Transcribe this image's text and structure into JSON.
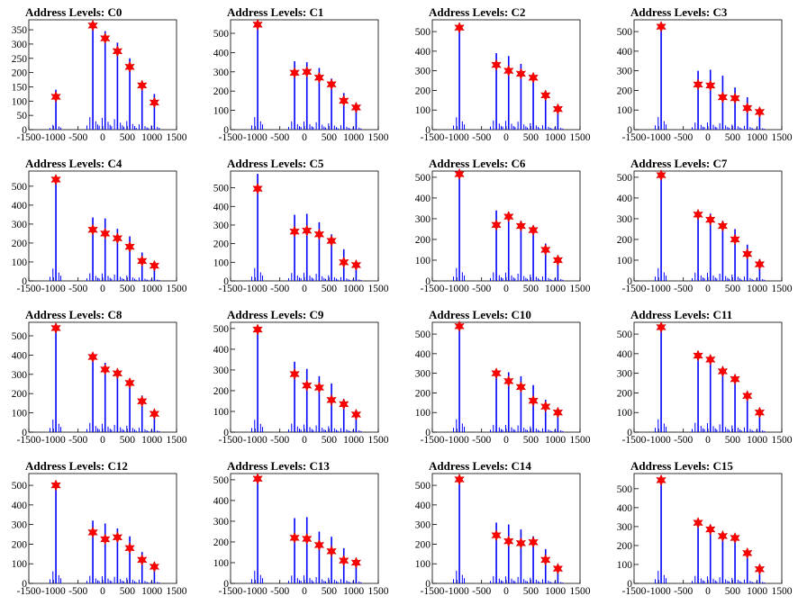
{
  "page": {
    "background": "#ffffff"
  },
  "chart_style": {
    "histogram_color": "#0000ff",
    "marker_color": "#ff0000",
    "marker_shape": "star-icon",
    "axis_color": "#000000"
  },
  "chart_data": [
    {
      "type": "bar",
      "title": "Address Levels: C0",
      "xlim": [
        -1500,
        1500
      ],
      "ylim": [
        0,
        385
      ],
      "xticks": [
        "-1500",
        "-1000",
        "-500",
        "0",
        "500",
        "1000",
        "1500"
      ],
      "yticks": [
        "0",
        "50",
        "100",
        "150",
        "200",
        "250",
        "300",
        "350"
      ],
      "peaks_x": [
        -950,
        -200,
        50,
        300,
        550,
        800,
        1050
      ],
      "bars_y": [
        140,
        365,
        345,
        305,
        250,
        155,
        125
      ],
      "markers_y": [
        115,
        365,
        320,
        275,
        220,
        155,
        95
      ]
    },
    {
      "type": "bar",
      "title": "Address Levels: C1",
      "xlim": [
        -1500,
        1500
      ],
      "ylim": [
        0,
        570
      ],
      "xticks": [
        "-1500",
        "-1000",
        "-500",
        "0",
        "500",
        "1000",
        "1500"
      ],
      "yticks": [
        "0",
        "100",
        "200",
        "300",
        "400",
        "500"
      ],
      "peaks_x": [
        -950,
        -200,
        50,
        300,
        550,
        800,
        1050
      ],
      "bars_y": [
        545,
        355,
        350,
        320,
        265,
        190,
        125
      ],
      "markers_y": [
        545,
        295,
        300,
        270,
        235,
        150,
        115
      ]
    },
    {
      "type": "bar",
      "title": "Address Levels: C2",
      "xlim": [
        -1500,
        1500
      ],
      "ylim": [
        0,
        560
      ],
      "xticks": [
        "-1500",
        "-1000",
        "-500",
        "0",
        "500",
        "1000",
        "1500"
      ],
      "yticks": [
        "0",
        "100",
        "200",
        "300",
        "400",
        "500"
      ],
      "peaks_x": [
        -950,
        -200,
        50,
        300,
        550,
        800,
        1050
      ],
      "bars_y": [
        525,
        390,
        375,
        335,
        270,
        185,
        110
      ],
      "markers_y": [
        520,
        330,
        300,
        285,
        265,
        175,
        105
      ]
    },
    {
      "type": "bar",
      "title": "Address Levels: C3",
      "xlim": [
        -1500,
        1500
      ],
      "ylim": [
        0,
        560
      ],
      "xticks": [
        "-1500",
        "-1000",
        "-500",
        "0",
        "500",
        "1000",
        "1500"
      ],
      "yticks": [
        "0",
        "100",
        "200",
        "300",
        "400",
        "500"
      ],
      "peaks_x": [
        -950,
        -200,
        50,
        300,
        550,
        800,
        1050
      ],
      "bars_y": [
        540,
        300,
        305,
        275,
        215,
        165,
        90
      ],
      "markers_y": [
        525,
        230,
        225,
        165,
        160,
        110,
        90
      ]
    },
    {
      "type": "bar",
      "title": "Address Levels: C4",
      "xlim": [
        -1500,
        1500
      ],
      "ylim": [
        0,
        580
      ],
      "xticks": [
        "-1500",
        "-1000",
        "-500",
        "0",
        "500",
        "1000",
        "1500"
      ],
      "yticks": [
        "0",
        "100",
        "200",
        "300",
        "400",
        "500"
      ],
      "peaks_x": [
        -950,
        -200,
        50,
        300,
        550,
        800,
        1050
      ],
      "bars_y": [
        545,
        335,
        330,
        275,
        235,
        150,
        85
      ],
      "markers_y": [
        535,
        270,
        250,
        225,
        180,
        105,
        80
      ]
    },
    {
      "type": "bar",
      "title": "Address Levels: C5",
      "xlim": [
        -1500,
        1500
      ],
      "ylim": [
        0,
        590
      ],
      "xticks": [
        "-1500",
        "-1000",
        "-500",
        "0",
        "500",
        "1000",
        "1500"
      ],
      "yticks": [
        "0",
        "100",
        "200",
        "300",
        "400",
        "500"
      ],
      "peaks_x": [
        -950,
        -200,
        50,
        300,
        550,
        800,
        1050
      ],
      "bars_y": [
        575,
        355,
        360,
        315,
        250,
        170,
        95
      ],
      "markers_y": [
        495,
        265,
        270,
        250,
        215,
        100,
        85
      ]
    },
    {
      "type": "bar",
      "title": "Address Levels: C6",
      "xlim": [
        -1500,
        1500
      ],
      "ylim": [
        0,
        530
      ],
      "xticks": [
        "-1500",
        "-1000",
        "-500",
        "0",
        "500",
        "1000",
        "1500"
      ],
      "yticks": [
        "0",
        "100",
        "200",
        "300",
        "400",
        "500"
      ],
      "peaks_x": [
        -950,
        -200,
        50,
        300,
        550,
        800,
        1050
      ],
      "bars_y": [
        520,
        340,
        330,
        290,
        250,
        180,
        110
      ],
      "markers_y": [
        515,
        270,
        310,
        265,
        245,
        150,
        100
      ]
    },
    {
      "type": "bar",
      "title": "Address Levels: C7",
      "xlim": [
        -1500,
        1500
      ],
      "ylim": [
        0,
        530
      ],
      "xticks": [
        "-1500",
        "-1000",
        "-500",
        "0",
        "500",
        "1000",
        "1500"
      ],
      "yticks": [
        "0",
        "100",
        "200",
        "300",
        "400",
        "500"
      ],
      "peaks_x": [
        -950,
        -200,
        50,
        300,
        550,
        800,
        1050
      ],
      "bars_y": [
        515,
        330,
        325,
        290,
        250,
        175,
        105
      ],
      "markers_y": [
        510,
        320,
        295,
        265,
        200,
        130,
        80
      ]
    },
    {
      "type": "bar",
      "title": "Address Levels: C8",
      "xlim": [
        -1500,
        1500
      ],
      "ylim": [
        0,
        570
      ],
      "xticks": [
        "-1500",
        "-1000",
        "-500",
        "0",
        "500",
        "1000",
        "1500"
      ],
      "yticks": [
        "0",
        "100",
        "200",
        "300",
        "400",
        "500"
      ],
      "peaks_x": [
        -950,
        -200,
        50,
        300,
        550,
        800,
        1050
      ],
      "bars_y": [
        545,
        400,
        360,
        315,
        275,
        190,
        105
      ],
      "markers_y": [
        540,
        390,
        325,
        305,
        255,
        160,
        95
      ]
    },
    {
      "type": "bar",
      "title": "Address Levels: C9",
      "xlim": [
        -1500,
        1500
      ],
      "ylim": [
        0,
        530
      ],
      "xticks": [
        "-1500",
        "-1000",
        "-500",
        "0",
        "500",
        "1000",
        "1500"
      ],
      "yticks": [
        "0",
        "100",
        "200",
        "300",
        "400",
        "500"
      ],
      "peaks_x": [
        -950,
        -200,
        50,
        300,
        550,
        800,
        1050
      ],
      "bars_y": [
        500,
        340,
        305,
        270,
        235,
        160,
        105
      ],
      "markers_y": [
        495,
        280,
        225,
        215,
        155,
        135,
        85
      ]
    },
    {
      "type": "bar",
      "title": "Address Levels: C10",
      "xlim": [
        -1500,
        1500
      ],
      "ylim": [
        0,
        560
      ],
      "xticks": [
        "-1500",
        "-1000",
        "-500",
        "0",
        "500",
        "1000",
        "1500"
      ],
      "yticks": [
        "0",
        "100",
        "200",
        "300",
        "400",
        "500"
      ],
      "peaks_x": [
        -950,
        -200,
        50,
        300,
        550,
        800,
        1050
      ],
      "bars_y": [
        550,
        310,
        305,
        285,
        240,
        165,
        115
      ],
      "markers_y": [
        540,
        300,
        260,
        230,
        160,
        130,
        100
      ]
    },
    {
      "type": "bar",
      "title": "Address Levels: C11",
      "xlim": [
        -1500,
        1500
      ],
      "ylim": [
        0,
        560
      ],
      "xticks": [
        "-1500",
        "-1000",
        "-500",
        "0",
        "500",
        "1000",
        "1500"
      ],
      "yticks": [
        "0",
        "100",
        "200",
        "300",
        "400",
        "500"
      ],
      "peaks_x": [
        -950,
        -200,
        50,
        300,
        550,
        800,
        1050
      ],
      "bars_y": [
        550,
        400,
        385,
        330,
        285,
        200,
        110
      ],
      "markers_y": [
        535,
        390,
        370,
        310,
        270,
        185,
        100
      ]
    },
    {
      "type": "bar",
      "title": "Address Levels: C12",
      "xlim": [
        -1500,
        1500
      ],
      "ylim": [
        0,
        560
      ],
      "xticks": [
        "-1500",
        "-1000",
        "-500",
        "0",
        "500",
        "1000",
        "1500"
      ],
      "yticks": [
        "0",
        "100",
        "200",
        "300",
        "400",
        "500"
      ],
      "peaks_x": [
        -950,
        -200,
        50,
        300,
        550,
        800,
        1050
      ],
      "bars_y": [
        515,
        320,
        305,
        280,
        240,
        160,
        95
      ],
      "markers_y": [
        500,
        260,
        225,
        235,
        180,
        120,
        85
      ]
    },
    {
      "type": "bar",
      "title": "Address Levels: C13",
      "xlim": [
        -1500,
        1500
      ],
      "ylim": [
        0,
        530
      ],
      "xticks": [
        "-1500",
        "-1000",
        "-500",
        "0",
        "500",
        "1000",
        "1500"
      ],
      "yticks": [
        "0",
        "100",
        "200",
        "300",
        "400",
        "500"
      ],
      "peaks_x": [
        -950,
        -200,
        50,
        300,
        550,
        800,
        1050
      ],
      "bars_y": [
        510,
        315,
        320,
        250,
        225,
        170,
        115
      ],
      "markers_y": [
        505,
        220,
        215,
        185,
        155,
        110,
        100
      ]
    },
    {
      "type": "bar",
      "title": "Address Levels: C14",
      "xlim": [
        -1500,
        1500
      ],
      "ylim": [
        0,
        560
      ],
      "xticks": [
        "-1500",
        "-1000",
        "-500",
        "0",
        "500",
        "1000",
        "1500"
      ],
      "yticks": [
        "0",
        "100",
        "200",
        "300",
        "400",
        "500"
      ],
      "peaks_x": [
        -950,
        -200,
        50,
        300,
        550,
        800,
        1050
      ],
      "bars_y": [
        540,
        310,
        300,
        275,
        240,
        175,
        90
      ],
      "markers_y": [
        530,
        245,
        215,
        205,
        210,
        120,
        75
      ]
    },
    {
      "type": "bar",
      "title": "Address Levels: C15",
      "xlim": [
        -1500,
        1500
      ],
      "ylim": [
        0,
        580
      ],
      "xticks": [
        "-1500",
        "-1000",
        "-500",
        "0",
        "500",
        "1000",
        "1500"
      ],
      "yticks": [
        "0",
        "100",
        "200",
        "300",
        "400",
        "500"
      ],
      "peaks_x": [
        -950,
        -200,
        50,
        300,
        550,
        800,
        1050
      ],
      "bars_y": [
        555,
        330,
        310,
        270,
        245,
        170,
        100
      ],
      "markers_y": [
        545,
        320,
        285,
        250,
        240,
        160,
        75
      ]
    }
  ]
}
